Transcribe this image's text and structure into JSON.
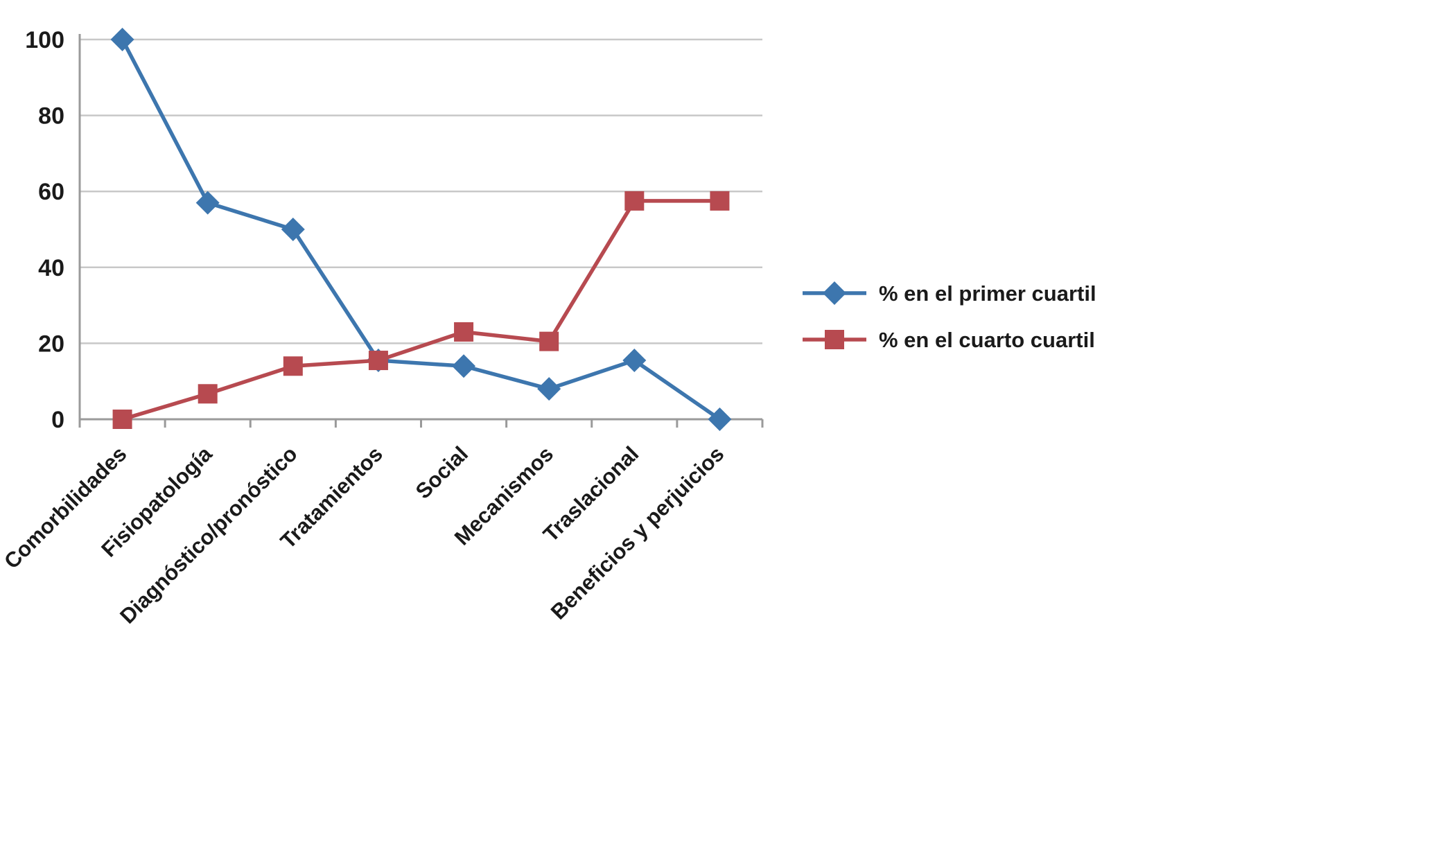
{
  "chart_data": {
    "type": "line",
    "title": "",
    "xlabel": "",
    "ylabel": "",
    "categories": [
      "Comorbilidades",
      "Fisiopatología",
      "Diagnóstico/pronóstico",
      "Tratamientos",
      "Social",
      "Mecanismos",
      "Traslacional",
      "Beneficios y perjuicios"
    ],
    "series": [
      {
        "name": "% en el primer cuartil",
        "values": [
          100,
          57,
          50,
          15.5,
          14,
          8,
          15.5,
          0
        ],
        "color": "#3D76AE",
        "marker": "diamond"
      },
      {
        "name": "% en el cuarto cuartil",
        "values": [
          0,
          6.7,
          14,
          15.5,
          23,
          20.5,
          57.5,
          57.5
        ],
        "color": "#B74A50",
        "marker": "square"
      }
    ],
    "ylim": [
      0,
      100
    ],
    "yticks": [
      0,
      20,
      40,
      60,
      80,
      100
    ],
    "grid": "horizontal",
    "legend_position": "right"
  },
  "colors": {
    "grid": "#C8C8C8",
    "axis": "#9A9A9A",
    "text": "#1A1A1A",
    "background": "#FFFFFF"
  }
}
